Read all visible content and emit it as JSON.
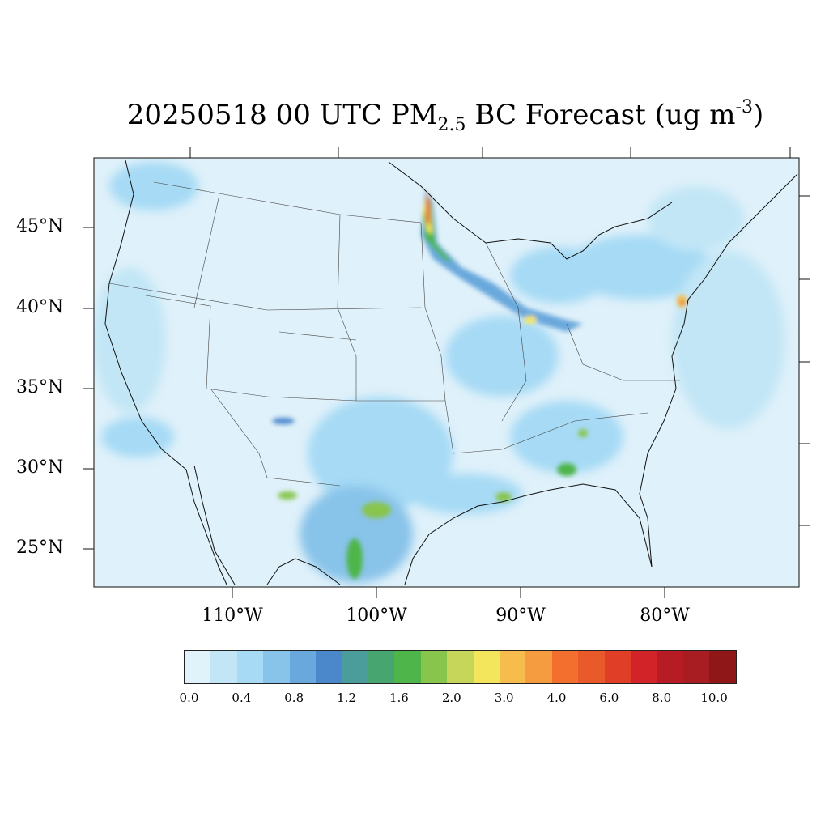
{
  "title": {
    "main": "20250518 00 UTC PM",
    "subscript": "2.5",
    "after": " BC Forecast (ug m",
    "superscript": "-3",
    "close": ")"
  },
  "lat_labels": [
    "45°N",
    "40°N",
    "35°N",
    "30°N",
    "25°N"
  ],
  "lon_labels": [
    "110°W",
    "100°W",
    "90°W",
    "80°W"
  ],
  "colorbar": {
    "colors": [
      "#e0f3fb",
      "#c2e6f6",
      "#a6daf5",
      "#88c3e9",
      "#69a8dc",
      "#4b87cb",
      "#4a9d9a",
      "#47a570",
      "#4eb54a",
      "#88c54d",
      "#c5d65a",
      "#f3e55c",
      "#f7bd4c",
      "#f69c40",
      "#f26f2e",
      "#e85a2a",
      "#e13e28",
      "#d22329",
      "#b71c24",
      "#a71d22",
      "#8f1718"
    ],
    "labels": [
      "0.0",
      "0.4",
      "0.8",
      "1.2",
      "1.6",
      "2.0",
      "3.0",
      "4.0",
      "6.0",
      "8.0",
      "10.0"
    ]
  },
  "field": {
    "background": "#dff1fa",
    "frame": "#333333"
  }
}
